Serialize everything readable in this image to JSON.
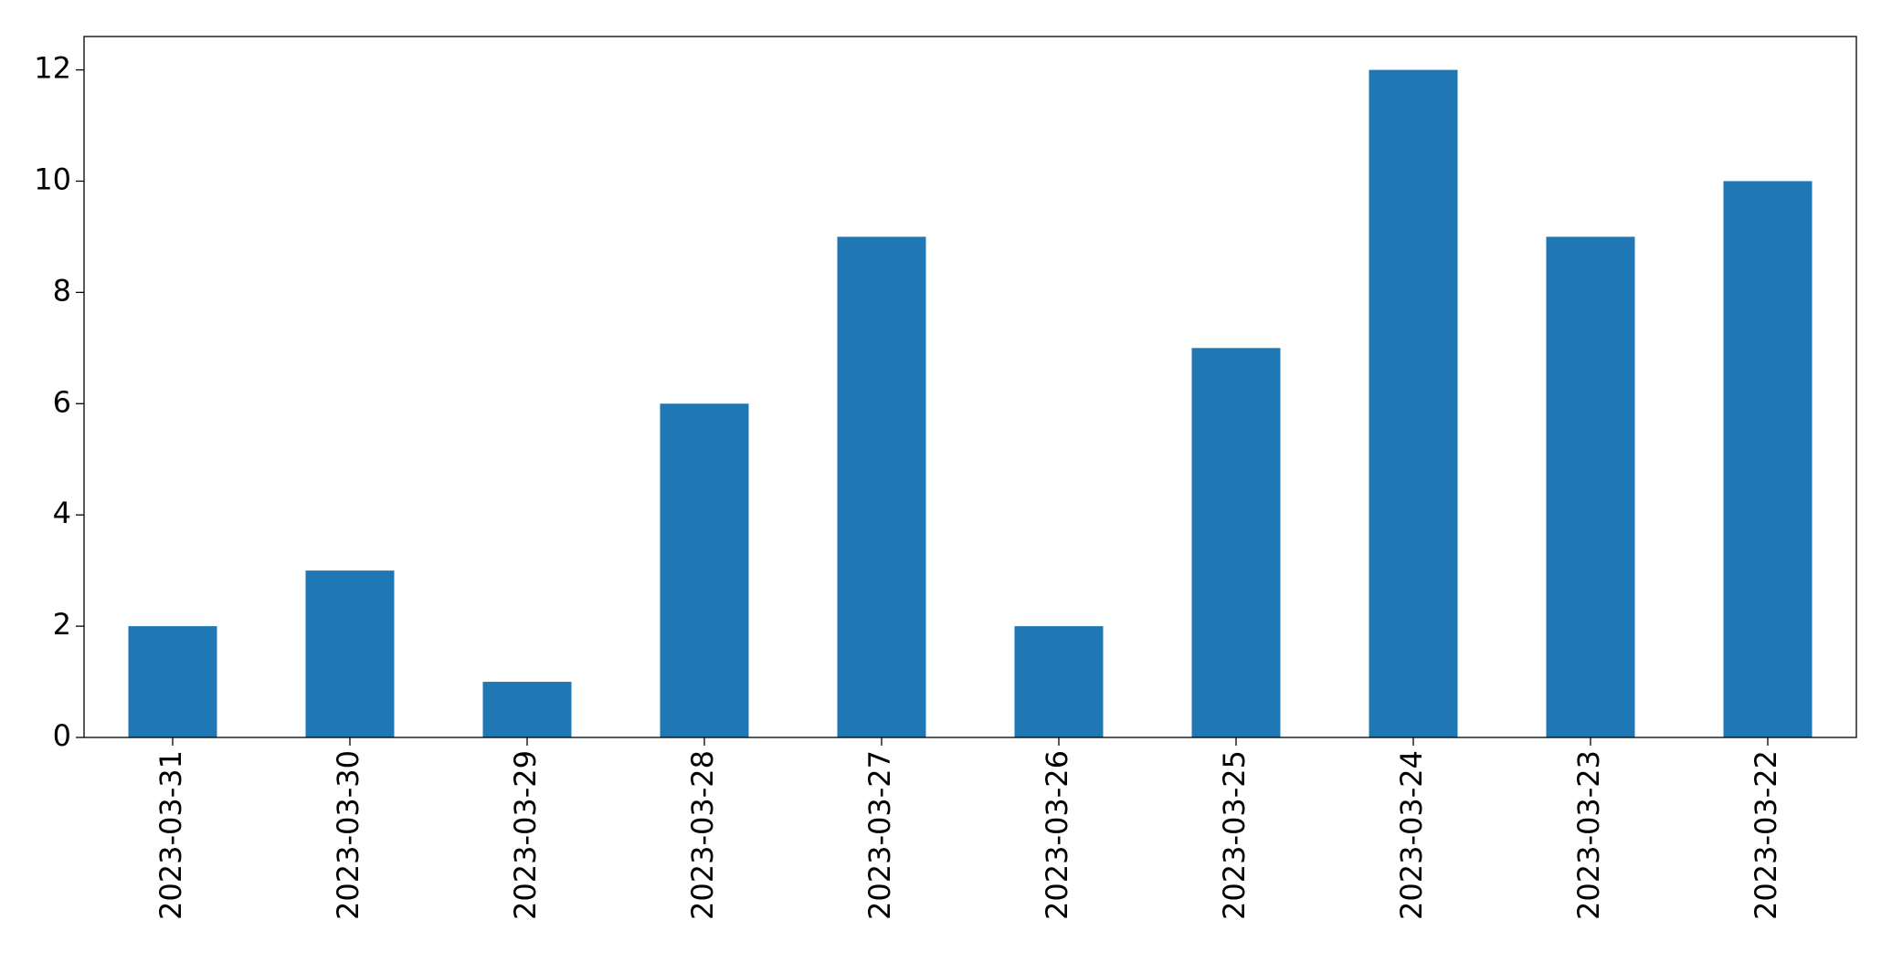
{
  "chart_data": {
    "type": "bar",
    "categories": [
      "2023-03-31",
      "2023-03-30",
      "2023-03-29",
      "2023-03-28",
      "2023-03-27",
      "2023-03-26",
      "2023-03-25",
      "2023-03-24",
      "2023-03-23",
      "2023-03-22"
    ],
    "values": [
      2,
      3,
      1,
      6,
      9,
      2,
      7,
      12,
      9,
      10
    ],
    "color": "#1f77b4",
    "ylim": [
      0,
      12.6
    ],
    "yticks": [
      0,
      2,
      4,
      6,
      8,
      10,
      12
    ],
    "grid": false
  }
}
